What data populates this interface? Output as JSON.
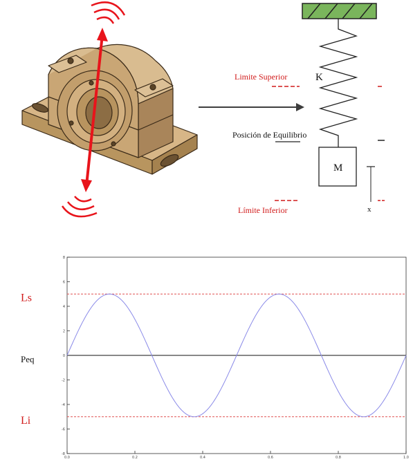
{
  "diagram": {
    "spring_label": "K",
    "mass_label": "M",
    "upper_limit_label": "Limite Superior",
    "equilibrium_label": "Posición  de Equilibrio",
    "lower_limit_label": "Límite Inferior",
    "displacement_label": "x"
  },
  "colors": {
    "vibration_arrow": "#e8141b",
    "block_body": "#c9a675",
    "block_outline": "#3a2a18",
    "ground_hatch": "#7ab55c",
    "limit_text": "#d11a1a",
    "sine_curve": "#8a8ae8",
    "limit_lines": "#e05050"
  },
  "chart_data": {
    "type": "line",
    "title": "",
    "xlabel": "",
    "ylabel": "",
    "xlim": [
      0.0,
      1.0
    ],
    "ylim": [
      -8,
      8
    ],
    "x_ticks": [
      "0.0",
      "0.2",
      "0.4",
      "0.6",
      "0.8",
      "1.0"
    ],
    "y_ticks": [
      "8",
      "6",
      "4",
      "2",
      "0",
      "-2",
      "-4",
      "-6",
      "-8"
    ],
    "series": [
      {
        "amplitude": 5,
        "frequency": 2,
        "samples": 201,
        "x_start": 0.0,
        "x_end": 1.0
      }
    ],
    "reference_lines": [
      {
        "label": "Ls",
        "y": 5,
        "style": "dashed"
      },
      {
        "label": "Peq",
        "y": 0,
        "style": "solid"
      },
      {
        "label": "Li",
        "y": -5,
        "style": "dashed"
      }
    ]
  }
}
